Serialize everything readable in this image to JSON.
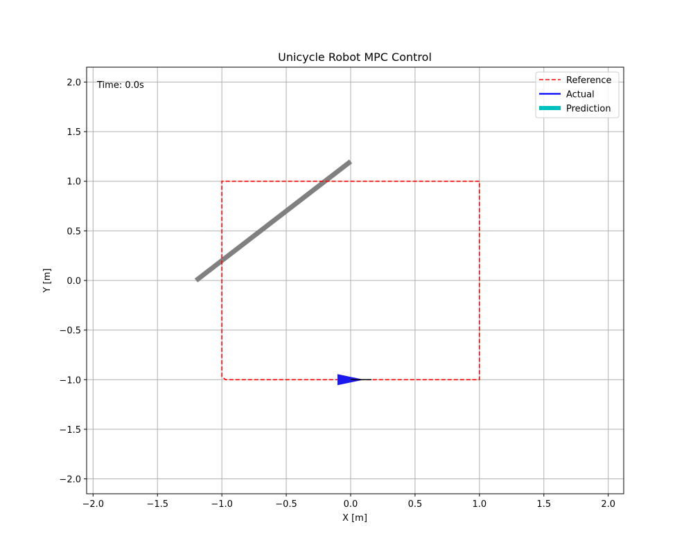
{
  "chart_data": {
    "type": "line",
    "title": "Unicycle Robot MPC Control",
    "xlabel": "X [m]",
    "ylabel": "Y [m]",
    "xlim": [
      -2.05,
      2.12
    ],
    "ylim": [
      -2.15,
      2.15
    ],
    "xticks": [
      -2.0,
      -1.5,
      -1.0,
      -0.5,
      0.0,
      0.5,
      1.0,
      1.5,
      2.0
    ],
    "yticks": [
      -2.0,
      -1.5,
      -1.0,
      -0.5,
      0.0,
      0.5,
      1.0,
      1.5,
      2.0
    ],
    "xtick_labels": [
      "−2.0",
      "−1.5",
      "−1.0",
      "−0.5",
      "0.0",
      "0.5",
      "1.0",
      "1.5",
      "2.0"
    ],
    "ytick_labels": [
      "−2.0",
      "−1.5",
      "−1.0",
      "−0.5",
      "0.0",
      "0.5",
      "1.0",
      "1.5",
      "2.0"
    ],
    "grid": true,
    "legend_position": "upper right",
    "annotation": "Time: 0.0s",
    "series": [
      {
        "name": "Reference",
        "style": "dashed",
        "color": "#ff0000",
        "x": [
          0.93,
          -0.97,
          -1.0,
          -1.0,
          1.0,
          1.0,
          0.93
        ],
        "y": [
          -1.0,
          -1.0,
          -0.97,
          1.0,
          1.0,
          -1.0,
          -1.0
        ]
      },
      {
        "name": "Actual",
        "style": "solid",
        "color": "#0000ff",
        "x": [
          0.0
        ],
        "y": [
          -1.0
        ]
      },
      {
        "name": "Prediction",
        "style": "thick",
        "color": "#00bfbf",
        "x": [],
        "y": []
      }
    ],
    "extra_line": {
      "color": "#808080",
      "x": [
        -1.2,
        0.0
      ],
      "y": [
        0.0,
        1.2
      ]
    },
    "robot": {
      "x": 0.0,
      "y": -1.0,
      "heading_deg": 0,
      "body_color": "#1a1aee",
      "heading_line_color": "#000000"
    }
  }
}
